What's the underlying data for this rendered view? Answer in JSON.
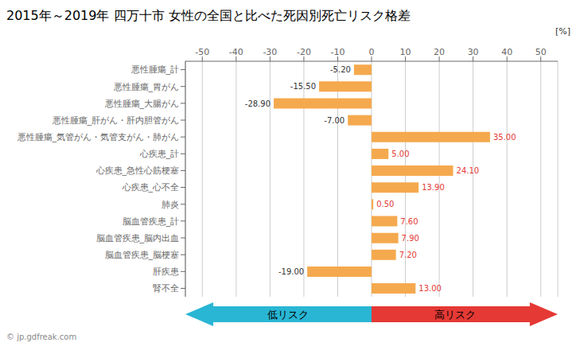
{
  "chart_data": {
    "type": "bar",
    "orientation": "horizontal",
    "title": "2015年～2019年 四万十市 女性の全国と比べた死因別死亡リスク格差",
    "xlabel": "[%]",
    "categories": [
      "悪性腫瘍_計",
      "悪性腫瘍_胃がん",
      "悪性腫瘍_大腸がん",
      "悪性腫瘍_肝がん・肝内胆管がん",
      "悪性腫瘍_気管がん・気管支がん・肺がん",
      "心疾患_計",
      "心疾患_急性心筋梗塞",
      "心疾患_心不全",
      "肺炎",
      "脳血管疾患_計",
      "脳血管疾患_脳内出血",
      "脳血管疾患_脳梗塞",
      "肝疾患",
      "腎不全"
    ],
    "values": [
      -5.2,
      -15.5,
      -28.9,
      -7.0,
      35.0,
      5.0,
      24.1,
      13.9,
      0.5,
      7.6,
      7.9,
      7.2,
      -19.0,
      13.0
    ],
    "value_labels": [
      "-5.20",
      "-15.50",
      "-28.90",
      "-7.00",
      "35.00",
      "5.00",
      "24.10",
      "13.90",
      "0.50",
      "7.60",
      "7.90",
      "7.20",
      "-19.00",
      "13.00"
    ],
    "data_labels": true,
    "color": "#f5a94e",
    "xlim": [
      -55,
      55
    ],
    "xticks": [
      -50,
      -40,
      -30,
      -20,
      -10,
      0,
      10,
      20,
      30,
      40,
      50
    ],
    "grid": true,
    "annotations": [
      {
        "text": "低リスク",
        "color": "#29b6d4"
      },
      {
        "text": "高リスク",
        "color": "#e53935"
      },
      {
        "text": "© jp.gdfreak.com"
      }
    ]
  }
}
